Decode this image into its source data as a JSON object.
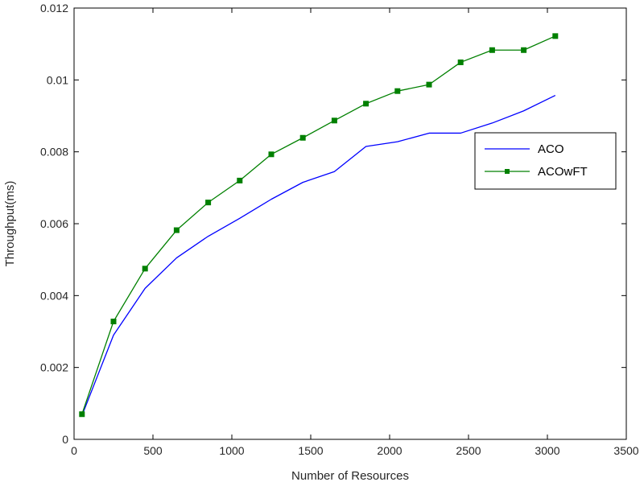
{
  "chart_data": {
    "type": "line",
    "title": "",
    "xlabel": "Number of Resources",
    "ylabel": "Throughput(ms)",
    "xlim": [
      0,
      3500
    ],
    "ylim": [
      0,
      0.012
    ],
    "x_ticks": [
      0,
      500,
      1000,
      1500,
      2000,
      2500,
      3000,
      3500
    ],
    "x_tick_labels": [
      "0",
      "500",
      "1000",
      "1500",
      "2000",
      "2500",
      "3000",
      "3500"
    ],
    "y_ticks": [
      0,
      0.002,
      0.004,
      0.006,
      0.008,
      0.01,
      0.012
    ],
    "y_tick_labels": [
      "0",
      "0.002",
      "0.004",
      "0.006",
      "0.008",
      "0.01",
      "0.012"
    ],
    "grid": false,
    "legend_position": "right",
    "x": [
      50,
      250,
      450,
      650,
      850,
      1050,
      1250,
      1450,
      1650,
      1850,
      2050,
      2250,
      2450,
      2650,
      2850,
      3050
    ],
    "series": [
      {
        "name": "ACO",
        "color": "#0000ff",
        "marker": "none",
        "values": [
          0.00066,
          0.0029,
          0.0042,
          0.00505,
          0.00565,
          0.00615,
          0.00668,
          0.00715,
          0.00745,
          0.00815,
          0.00828,
          0.00852,
          0.00852,
          0.0088,
          0.00914,
          0.00957
        ]
      },
      {
        "name": "ACOwFT",
        "color": "#008000",
        "marker": "square",
        "values": [
          0.0007,
          0.00328,
          0.00475,
          0.00582,
          0.00659,
          0.0072,
          0.00793,
          0.00839,
          0.00887,
          0.00934,
          0.00969,
          0.00987,
          0.01049,
          0.01083,
          0.01083,
          0.01122
        ]
      }
    ]
  }
}
